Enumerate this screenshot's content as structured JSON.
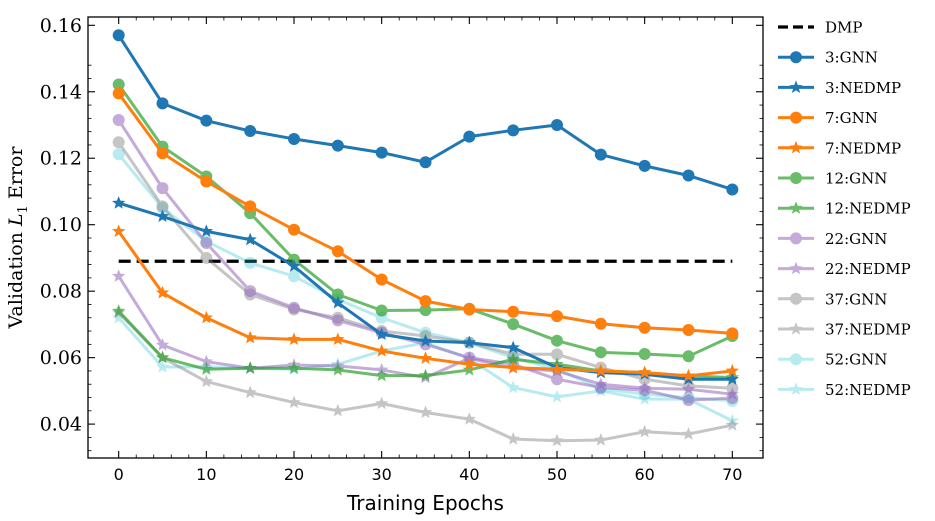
{
  "chart_data": {
    "type": "line",
    "title": "",
    "xlabel": "Training Epochs",
    "ylabel_main": "Validation ",
    "ylabel_var": "L",
    "ylabel_sub": "1",
    "ylabel_tail": " Error",
    "xlim": [
      -3.5,
      73.5
    ],
    "ylim": [
      0.0298,
      0.1625
    ],
    "xticks": [
      0,
      10,
      20,
      30,
      40,
      50,
      60,
      70
    ],
    "xtick_labels": [
      "0",
      "10",
      "20",
      "30",
      "40",
      "50",
      "60",
      "70"
    ],
    "yticks": [
      0.04,
      0.06,
      0.08,
      0.1,
      0.12,
      0.14,
      0.16
    ],
    "ytick_labels": [
      "0.04",
      "0.06",
      "0.08",
      "0.10",
      "0.12",
      "0.14",
      "0.16"
    ],
    "grid": false,
    "legend_position": "outside-right",
    "x": [
      0,
      5,
      10,
      15,
      20,
      25,
      30,
      35,
      40,
      45,
      50,
      55,
      60,
      65,
      70
    ],
    "baseline": {
      "name": "DMP",
      "value": 0.089,
      "color": "#000000",
      "x_range": [
        0,
        70
      ]
    },
    "series": [
      {
        "name": "3:GNN",
        "color": "#1f77b4",
        "marker": "circle",
        "alpha": 1.0,
        "values": [
          0.157,
          0.1365,
          0.1313,
          0.1282,
          0.1258,
          0.1238,
          0.1217,
          0.1188,
          0.1265,
          0.1284,
          0.13,
          0.1211,
          0.1177,
          0.1148,
          0.1106
        ]
      },
      {
        "name": "3:NEDMP",
        "color": "#1f77b4",
        "marker": "star",
        "alpha": 1.0,
        "values": [
          0.1065,
          0.1025,
          0.098,
          0.0955,
          0.0875,
          0.0765,
          0.067,
          0.065,
          0.0645,
          0.063,
          0.057,
          0.0555,
          0.055,
          0.0535,
          0.0535
        ]
      },
      {
        "name": "7:GNN",
        "color": "#ff7f0e",
        "marker": "circle",
        "alpha": 1.0,
        "values": [
          0.1395,
          0.1215,
          0.113,
          0.1055,
          0.0985,
          0.092,
          0.0835,
          0.077,
          0.0745,
          0.0738,
          0.0725,
          0.0702,
          0.069,
          0.0683,
          0.0673
        ]
      },
      {
        "name": "7:NEDMP",
        "color": "#ff7f0e",
        "marker": "star",
        "alpha": 1.0,
        "values": [
          0.098,
          0.0795,
          0.072,
          0.066,
          0.0655,
          0.0655,
          0.062,
          0.0598,
          0.058,
          0.057,
          0.0565,
          0.056,
          0.0555,
          0.0545,
          0.056
        ]
      },
      {
        "name": "12:GNN",
        "color": "#2ca02c",
        "marker": "circle",
        "alpha": 0.7,
        "values": [
          0.1422,
          0.1235,
          0.1145,
          0.1035,
          0.0895,
          0.079,
          0.0742,
          0.0743,
          0.0747,
          0.0701,
          0.0651,
          0.0616,
          0.0611,
          0.0604,
          0.0665
        ]
      },
      {
        "name": "12:NEDMP",
        "color": "#2ca02c",
        "marker": "star",
        "alpha": 0.7,
        "values": [
          0.074,
          0.06,
          0.0565,
          0.0568,
          0.0568,
          0.0563,
          0.0546,
          0.0546,
          0.0563,
          0.0595,
          0.058,
          0.056,
          0.0555,
          0.0545,
          0.054
        ]
      },
      {
        "name": "22:GNN",
        "color": "#9467bd",
        "marker": "circle",
        "alpha": 0.55,
        "values": [
          0.1315,
          0.111,
          0.0945,
          0.08,
          0.075,
          0.0712,
          0.0675,
          0.064,
          0.06,
          0.058,
          0.0535,
          0.051,
          0.0502,
          0.0472,
          0.0478
        ]
      },
      {
        "name": "22:NEDMP",
        "color": "#9467bd",
        "marker": "star",
        "alpha": 0.55,
        "values": [
          0.0845,
          0.0638,
          0.0588,
          0.0568,
          0.0578,
          0.0575,
          0.0563,
          0.054,
          0.0598,
          0.0568,
          0.056,
          0.052,
          0.0508,
          0.0505,
          0.049
        ]
      },
      {
        "name": "37:GNN",
        "color": "#7f7f7f",
        "marker": "circle",
        "alpha": 0.45,
        "values": [
          0.1248,
          0.1055,
          0.09,
          0.079,
          0.0745,
          0.072,
          0.068,
          0.0665,
          0.0645,
          0.061,
          0.061,
          0.057,
          0.0535,
          0.0515,
          0.0508
        ]
      },
      {
        "name": "37:NEDMP",
        "color": "#7f7f7f",
        "marker": "star",
        "alpha": 0.45,
        "values": [
          0.0735,
          0.06,
          0.0528,
          0.0495,
          0.0465,
          0.044,
          0.0462,
          0.0435,
          0.0415,
          0.0355,
          0.035,
          0.0352,
          0.0377,
          0.037,
          0.0397
        ]
      },
      {
        "name": "52:GNN",
        "color": "#17becf",
        "marker": "circle",
        "alpha": 0.3,
        "values": [
          0.1212,
          0.105,
          0.095,
          0.0885,
          0.0845,
          0.0775,
          0.072,
          0.0675,
          0.0645,
          0.06,
          0.0565,
          0.0507,
          0.049,
          0.048,
          0.047
        ]
      },
      {
        "name": "52:NEDMP",
        "color": "#17becf",
        "marker": "star",
        "alpha": 0.3,
        "values": [
          0.072,
          0.0572,
          0.0572,
          0.0568,
          0.0565,
          0.058,
          0.062,
          0.0645,
          0.0597,
          0.051,
          0.0482,
          0.05,
          0.0475,
          0.0475,
          0.041
        ]
      }
    ]
  }
}
